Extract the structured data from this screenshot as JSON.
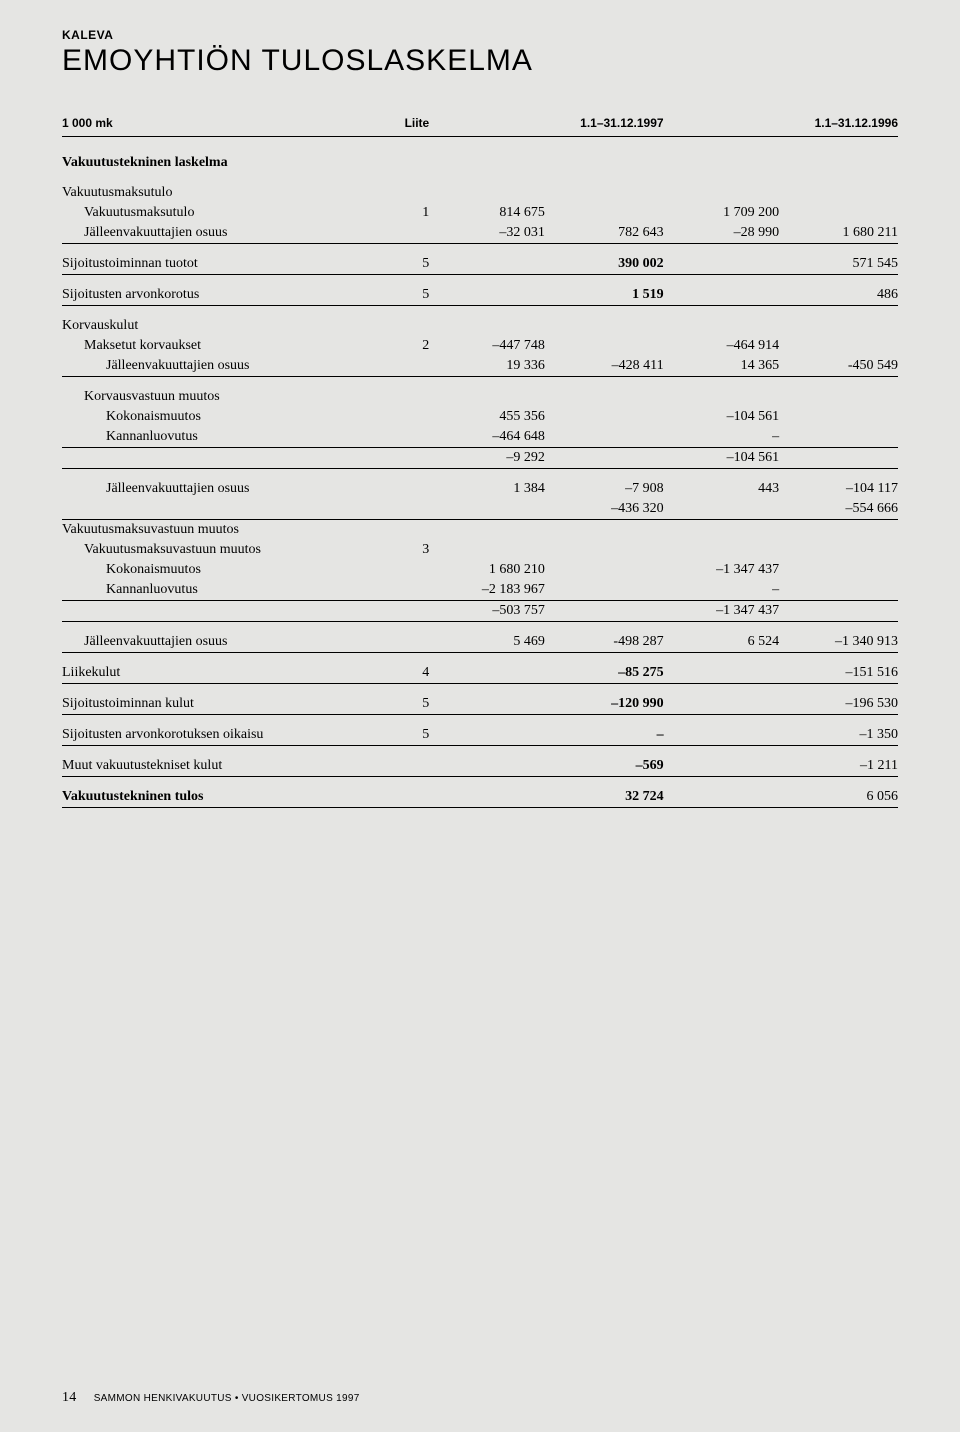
{
  "company": "KALEVA",
  "title": "EMOYHTIÖN TULOSLASKELMA",
  "header": {
    "unit": "1 000 mk",
    "liite": "Liite",
    "period1": "1.1–31.12.1997",
    "period2": "1.1–31.12.1996"
  },
  "sections": {
    "vt_laskelma": "Vakuutustekninen laskelma",
    "vmaksutulo": "Vakuutusmaksutulo",
    "vmaksutulo_row": {
      "label": "Vakuutusmaksutulo",
      "liite": "1",
      "a": "814 675",
      "c": "1 709 200"
    },
    "jvo1": {
      "label": "Jälleenvakuuttajien osuus",
      "a": "–32 031",
      "b": "782 643",
      "c": "–28 990",
      "d": "1 680 211"
    },
    "sij_tuotot": {
      "label": "Sijoitustoiminnan tuotot",
      "liite": "5",
      "b": "390 002",
      "d": "571 545"
    },
    "sij_arvonk": {
      "label": "Sijoitusten arvonkorotus",
      "liite": "5",
      "b": "1 519",
      "d": "486"
    },
    "korvauskulut": "Korvauskulut",
    "mkorv": {
      "label": "Maksetut korvaukset",
      "liite": "2",
      "a": "–447 748",
      "c": "–464 914"
    },
    "jvo2": {
      "label": "Jälleenvakuuttajien osuus",
      "a": "19 336",
      "b": "–428 411",
      "c": "14 365",
      "d": "-450 549"
    },
    "korvvast": "Korvausvastuun muutos",
    "kok1": {
      "label": "Kokonaismuutos",
      "a": "455 356",
      "c": "–104 561"
    },
    "kan1": {
      "label": "Kannanluovutus",
      "a": "–464 648",
      "c": "–"
    },
    "sub1": {
      "a": "–9 292",
      "c": "–104 561"
    },
    "jvo3": {
      "label": "Jälleenvakuuttajien osuus",
      "a": "1 384",
      "b": "–7 908",
      "c": "443",
      "d": "–104 117"
    },
    "sub2": {
      "b": "–436 320",
      "d": "–554 666"
    },
    "vmvmuutos_head": "Vakuutusmaksuvastuun muutos",
    "vmvmuutos_row": {
      "label": "Vakuutusmaksuvastuun muutos",
      "liite": "3"
    },
    "kok2": {
      "label": "Kokonaismuutos",
      "a": "1 680 210",
      "c": "–1 347 437"
    },
    "kan2": {
      "label": "Kannanluovutus",
      "a": "–2 183 967",
      "c": "–"
    },
    "sub3": {
      "a": "–503 757",
      "c": "–1 347 437"
    },
    "jvo4": {
      "label": "Jälleenvakuuttajien osuus",
      "a": "5 469",
      "b": "-498 287",
      "c": "6 524",
      "d": "–1 340 913"
    },
    "liikekulut": {
      "label": "Liikekulut",
      "liite": "4",
      "b": "–85 275",
      "d": "–151 516"
    },
    "sij_kulut": {
      "label": "Sijoitustoiminnan kulut",
      "liite": "5",
      "b": "–120 990",
      "d": "–196 530"
    },
    "sij_oikaisu": {
      "label": "Sijoitusten arvonkorotuksen oikaisu",
      "liite": "5",
      "b": "–",
      "d": "–1 350"
    },
    "muut_kulut": {
      "label": "Muut vakuutustekniset kulut",
      "b": "–569",
      "d": "–1 211"
    },
    "vt_tulos": {
      "label": "Vakuutustekninen tulos",
      "b": "32 724",
      "d": "6 056"
    }
  },
  "footer": {
    "page": "14",
    "text": "SAMMON HENKIVAKUUTUS • VUOSIKERTOMUS 1997"
  }
}
